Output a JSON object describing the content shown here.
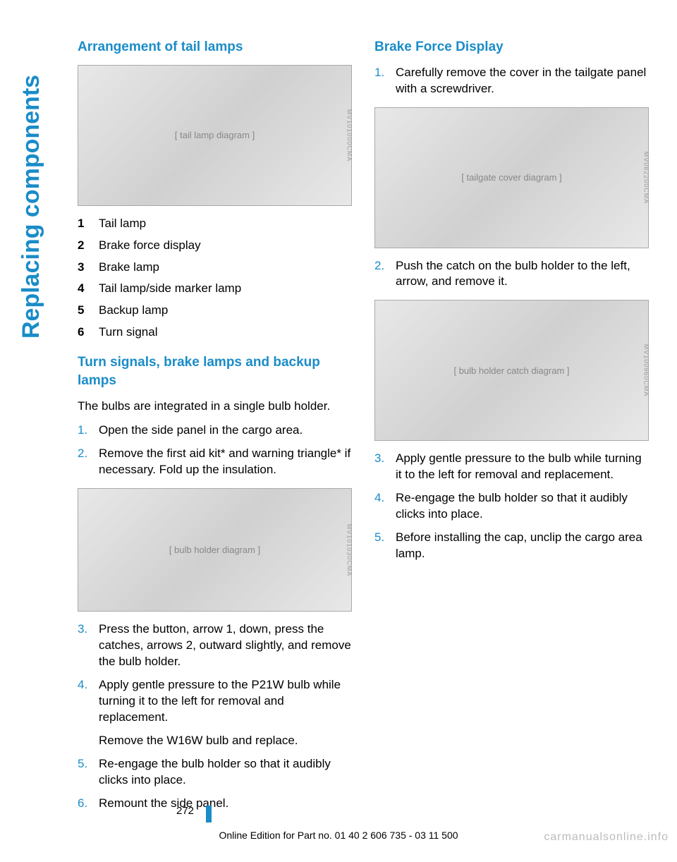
{
  "side_title": "Replacing components",
  "left": {
    "h_tail_arrangement": "Arrangement of tail lamps",
    "fig1_code": "MV101000CMA",
    "legend": [
      {
        "n": "1",
        "t": "Tail lamp"
      },
      {
        "n": "2",
        "t": "Brake force display"
      },
      {
        "n": "3",
        "t": "Brake lamp"
      },
      {
        "n": "4",
        "t": "Tail lamp/side marker lamp"
      },
      {
        "n": "5",
        "t": "Backup lamp"
      },
      {
        "n": "6",
        "t": "Turn signal"
      }
    ],
    "h_turn": "Turn signals, brake lamps and backup lamps",
    "turn_intro": "The bulbs are integrated in a single bulb holder.",
    "steps_a": [
      "Open the side panel in the cargo area.",
      "Remove the first aid kit* and warning triangle* if necessary. Fold up the insulation."
    ],
    "fig2_code": "MV101030CMA",
    "steps_b": [
      "Press the button, arrow 1, down, press the catches, arrows 2, outward slightly, and remove the bulb holder.",
      "Apply gentle pressure to the P21W bulb while turning it to the left for removal and replacement."
    ],
    "step4_sub": "Remove the W16W bulb and replace.",
    "steps_c": [
      "Re-engage the bulb holder so that it audibly clicks into place.",
      "Remount the side panel."
    ]
  },
  "right": {
    "h_brake": "Brake Force Display",
    "step1": "Carefully remove the cover in the tailgate panel with a screwdriver.",
    "fig3_code": "MV082200CMA",
    "step2": "Push the catch on the bulb holder to the left, arrow, and remove it.",
    "fig4_code": "MV100960CMA",
    "steps_rest": [
      "Apply gentle pressure to the bulb while turning it to the left for removal and replacement.",
      "Re-engage the bulb holder so that it audibly clicks into place.",
      "Before installing the cap, unclip the cargo area lamp."
    ]
  },
  "page_number": "272",
  "footer_line": "Online Edition for Part no. 01 40 2 606 735 - 03 11 500",
  "watermark": "carmanualsonline.info"
}
